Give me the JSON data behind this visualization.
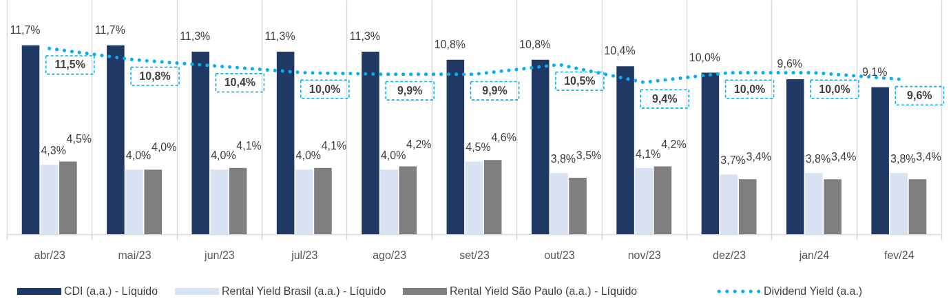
{
  "chart_data": {
    "type": "bar",
    "categories": [
      "abr/23",
      "mai/23",
      "jun/23",
      "jul/23",
      "ago/23",
      "set/23",
      "out/23",
      "nov/23",
      "dez/23",
      "jan/24",
      "fev/24"
    ],
    "ylim": [
      0,
      14.5
    ],
    "tick_labels": "x",
    "grid": "x",
    "legend": "bottom",
    "series": [
      {
        "name": "CDI (a.a.) - Líquido",
        "color": "#203864",
        "values": [
          11.7,
          11.7,
          11.3,
          11.3,
          11.3,
          10.8,
          10.8,
          10.4,
          10.0,
          9.6,
          9.1
        ],
        "value_labels": [
          "11,7%",
          "11,7%",
          "11,3%",
          "11,3%",
          "11,3%",
          "10,8%",
          "10,8%",
          "10,4%",
          "10,0%",
          "9,6%",
          "9,1%"
        ]
      },
      {
        "name": "Rental Yield Brasil (a.a.) - Líquido",
        "color": "#dae3f3",
        "values": [
          4.3,
          4.0,
          4.0,
          4.0,
          4.0,
          4.5,
          3.8,
          4.1,
          3.7,
          3.8,
          3.8
        ],
        "value_labels": [
          "4,3%",
          "4,0%",
          "4,0%",
          "4,0%",
          "4,0%",
          "4,5%",
          "3,8%",
          "4,1%",
          "3,7%",
          "3,8%",
          "3,8%"
        ]
      },
      {
        "name": "Rental Yield São Paulo (a.a.) - Líquido",
        "color": "#7f7f7f",
        "values": [
          4.5,
          4.0,
          4.1,
          4.1,
          4.2,
          4.6,
          3.5,
          4.2,
          3.4,
          3.4,
          3.4
        ],
        "value_labels": [
          "4,5%",
          "4,0%",
          "4,1%",
          "4,1%",
          "4,2%",
          "4,6%",
          "3,5%",
          "4,2%",
          "3,4%",
          "3,4%",
          "3,4%"
        ]
      },
      {
        "name": "Dividend Yield (a.a.)",
        "type": "line",
        "line_style": "dotted",
        "color": "#00b0f0",
        "values": [
          11.5,
          10.8,
          10.4,
          10.0,
          9.9,
          9.9,
          10.5,
          9.4,
          10.0,
          10.0,
          9.6
        ],
        "value_labels": [
          "11,5%",
          "10,8%",
          "10,4%",
          "10,0%",
          "9,9%",
          "9,9%",
          "10,5%",
          "9,4%",
          "10,0%",
          "10,0%",
          "9,6%"
        ]
      }
    ]
  }
}
